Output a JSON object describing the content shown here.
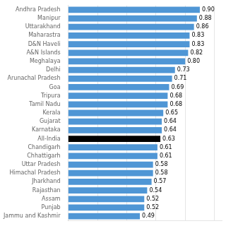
{
  "chart_data": {
    "type": "bar",
    "orientation": "horizontal",
    "categories": [
      "Jammu and Kashmir",
      "Punjab",
      "Assam",
      "Rajasthan",
      "Jharkhand",
      "Himachal Pradesh",
      "Uttar Pradesh",
      "Chhattigarh",
      "Chandigarh",
      "All-India",
      "Karnataka",
      "Gujarat",
      "Kerala",
      "Tamil Nadu",
      "Tripura",
      "Goa",
      "Arunachal Pradesh",
      "Delhi",
      "Meghalaya",
      "A&N Islands",
      "D&N Haveli",
      "Maharastra",
      "Uttarakhand",
      "Manipur",
      "Andhra Pradesh"
    ],
    "values": [
      0.49,
      0.52,
      0.52,
      0.54,
      0.57,
      0.58,
      0.58,
      0.61,
      0.61,
      0.63,
      0.64,
      0.64,
      0.65,
      0.68,
      0.68,
      0.69,
      0.71,
      0.73,
      0.8,
      0.82,
      0.83,
      0.83,
      0.86,
      0.88,
      0.9
    ],
    "value_labels": [
      "0.49",
      "0.52",
      "0.52",
      "0.54",
      "0.57",
      "0.58",
      "0.58",
      "0.61",
      "0.61",
      "0.63",
      "0.64",
      "0.64",
      "0.65",
      "0.68",
      "0.68",
      "0.69",
      "0.71",
      "0.73",
      "0.80",
      "0.82",
      "0.83",
      "0.83",
      "0.86",
      "0.88",
      "0.90"
    ],
    "colors": [
      "#4f96d5",
      "#4f96d5",
      "#4f96d5",
      "#4f96d5",
      "#4f96d5",
      "#4f96d5",
      "#4f96d5",
      "#4f96d5",
      "#4f96d5",
      "#000000",
      "#4f96d5",
      "#4f96d5",
      "#4f96d5",
      "#4f96d5",
      "#4f96d5",
      "#4f96d5",
      "#4f96d5",
      "#4f96d5",
      "#4f96d5",
      "#4f96d5",
      "#4f96d5",
      "#4f96d5",
      "#4f96d5",
      "#4f96d5",
      "#4f96d5"
    ],
    "xlim": [
      0,
      1.05
    ],
    "xticks": [
      0.2,
      0.4,
      0.6,
      0.8,
      1.0
    ],
    "grid": true,
    "data_labels": true,
    "tick_labels": "y"
  }
}
